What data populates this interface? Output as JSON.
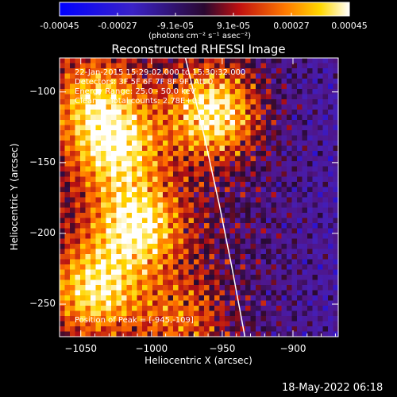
{
  "colorbar": {
    "tick_labels": [
      "-0.00045",
      "-0.00027",
      "-9.1e-05",
      "9.1e-05",
      "0.00027",
      "0.00045"
    ],
    "unit_label": "(photons cm⁻² s⁻¹ asec⁻²)"
  },
  "chart_data": {
    "type": "heatmap",
    "title": "Reconstructed RHESSI Image",
    "xlabel": "Heliocentric X (arcsec)",
    "ylabel": "Heliocentric Y (arcsec)",
    "xlim": [
      -1065,
      -868
    ],
    "ylim": [
      -273,
      -76
    ],
    "xticks": [
      -1050,
      -1000,
      -950,
      -900
    ],
    "yticks": [
      -250,
      -200,
      -150,
      -100
    ],
    "xtick_labels": [
      "−1050",
      "−1000",
      "−950",
      "−900"
    ],
    "ytick_labels": [
      "−250",
      "−200",
      "−150",
      "−100"
    ],
    "value_range": [
      -0.00045,
      0.00045
    ],
    "colormap": "blue-purple-red-yellow-white",
    "limb_curve": [
      [
        -976,
        -76
      ],
      [
        -963,
        -130
      ],
      [
        -952,
        -180
      ],
      [
        -943,
        -225
      ],
      [
        -934,
        -273
      ]
    ],
    "bright_regions": [
      {
        "x": -1025,
        "y": -140,
        "value": 0.0004
      },
      {
        "x": -1010,
        "y": -195,
        "value": 0.00045
      },
      {
        "x": -1040,
        "y": -240,
        "value": 0.0004
      },
      {
        "x": -1040,
        "y": -105,
        "value": 0.0003
      },
      {
        "x": -955,
        "y": -115,
        "value": 0.00045
      },
      {
        "x": -980,
        "y": -260,
        "value": 0.0002
      }
    ],
    "annotations": {
      "line1": "22-Jan-2015 15:29:02.000 to 15:30:32.000",
      "line2": "Detectors: 3F 5F 6F 7F 8F 9F, Att 0",
      "line3": "Energy Range: 25.0 - 50.0 keV",
      "line4": "Clean     Total counts: 2.78E+03",
      "peak": "Position of Peak = [-945,-109]"
    }
  },
  "footer": {
    "timestamp": "18-May-2022 06:18"
  }
}
